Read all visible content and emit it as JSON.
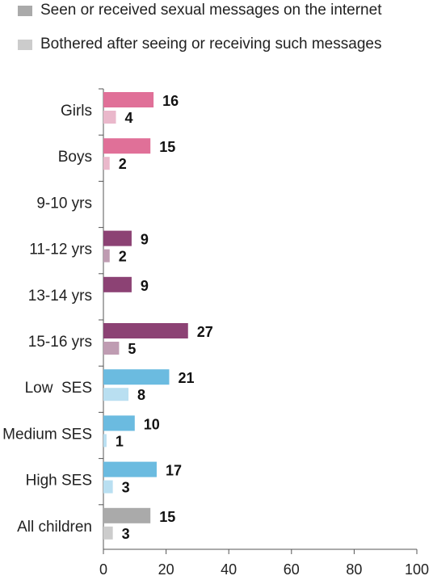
{
  "chart_data": {
    "type": "bar",
    "orientation": "horizontal",
    "categories": [
      "Girls",
      "Boys",
      "9-10 yrs",
      "11-12 yrs",
      "13-14 yrs",
      "15-16 yrs",
      "Low  SES",
      "Medium SES",
      "High SES",
      "All children"
    ],
    "series": [
      {
        "name": "Seen or received sexual messages on the internet",
        "values": [
          16,
          15,
          null,
          9,
          9,
          27,
          21,
          10,
          17,
          15
        ]
      },
      {
        "name": "Bothered after seeing or receiving such messages",
        "values": [
          4,
          2,
          null,
          2,
          null,
          5,
          8,
          1,
          3,
          3
        ]
      }
    ],
    "bar_colors": {
      "seen": [
        "#e07098",
        "#e07098",
        "#8c4274",
        "#8c4274",
        "#8c4274",
        "#8c4274",
        "#6bbbe0",
        "#6bbbe0",
        "#6bbbe0",
        "#aaaaaa"
      ],
      "bothered": [
        "#eab8cb",
        "#eab8cb",
        "#bf9cb2",
        "#bf9cb2",
        "#bf9cb2",
        "#bf9cb2",
        "#b9dff1",
        "#b9dff1",
        "#b9dff1",
        "#cccccc"
      ]
    },
    "legend_colors": [
      "#aaaaaa",
      "#cccccc"
    ],
    "xlim": [
      0,
      100
    ],
    "xticks": [
      0,
      20,
      40,
      60,
      80,
      100
    ],
    "legend_position": "top-left",
    "grid": false
  }
}
